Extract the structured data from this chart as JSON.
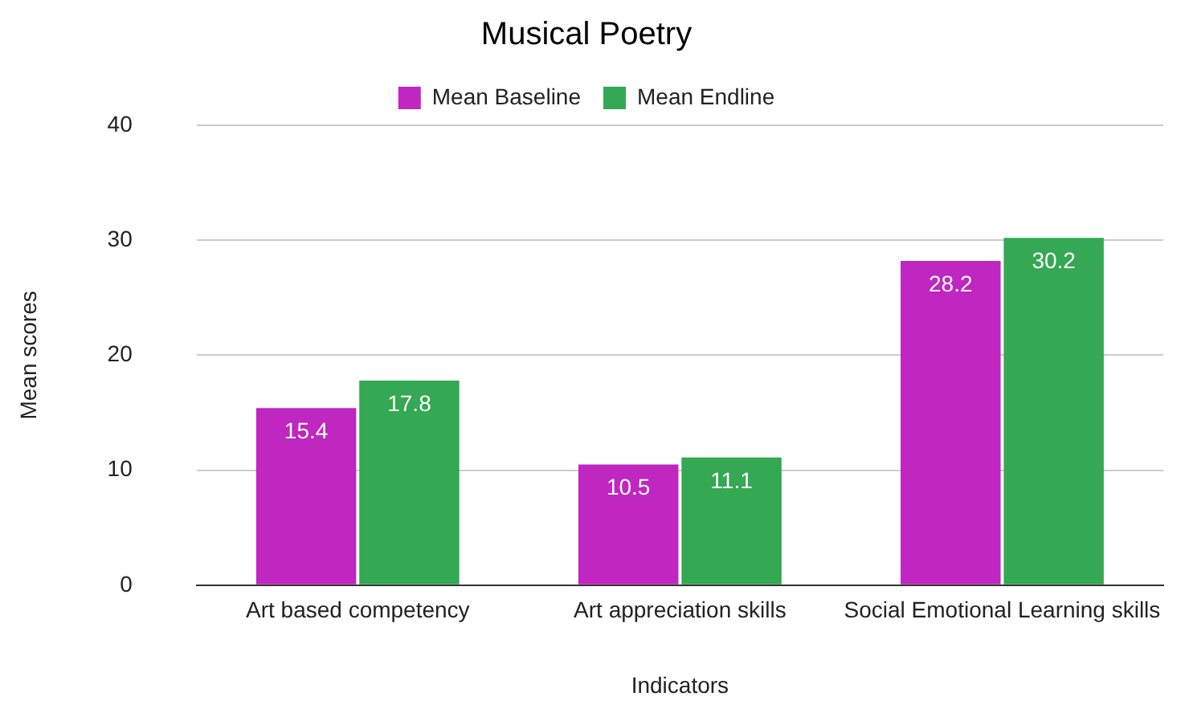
{
  "chart_data": {
    "type": "bar",
    "title": "Musical Poetry",
    "xlabel": "Indicators",
    "ylabel": "Mean scores",
    "categories": [
      "Art based competency",
      "Art appreciation skills",
      "Social Emotional Learning skills"
    ],
    "series": [
      {
        "name": "Mean Baseline",
        "color": "#c026c0",
        "values": [
          15.4,
          10.5,
          28.2
        ]
      },
      {
        "name": "Mean Endline",
        "color": "#34a853",
        "values": [
          17.8,
          11.1,
          30.2
        ]
      }
    ],
    "ylim": [
      0,
      40
    ],
    "yticks": [
      0,
      10,
      20,
      30,
      40
    ],
    "grid": "y",
    "legend": "top",
    "data_labels": true
  }
}
